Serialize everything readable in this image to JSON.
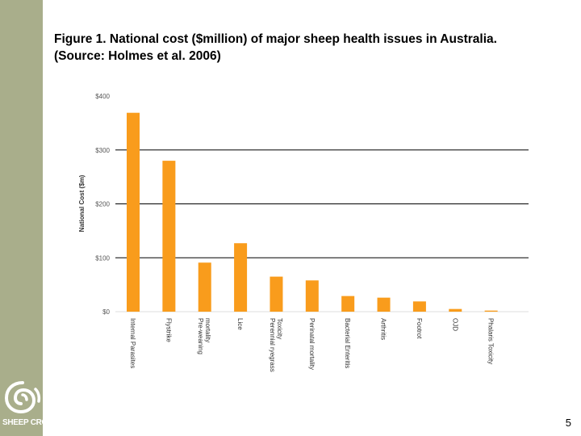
{
  "figure_title": "Figure 1. National cost ($million) of major sheep health issues in Australia. (Source: Holmes et al. 2006)",
  "logo": {
    "text": "SHEEP CRC"
  },
  "page_number": "5",
  "colors": {
    "bar": "#f99c1c",
    "sidebar": "#a9ae8b",
    "gridline": "#000000",
    "axis_text": "#555555"
  },
  "chart_data": {
    "type": "bar",
    "title": "",
    "xlabel": "",
    "ylabel": "National Cost ($m)",
    "ylim": [
      0,
      400
    ],
    "yticks": [
      0,
      100,
      200,
      300,
      400
    ],
    "ytick_labels": [
      "$0",
      "$100",
      "$200",
      "$300",
      "$400"
    ],
    "grid": true,
    "categories": [
      "Internal Parasites",
      "Flystrike",
      "Pre-weaning mortality",
      "Lice",
      "Perennial ryegrass Toxicity",
      "Perinatal mortality",
      "Bacterial Enteritis",
      "Arthritis",
      "Footrot",
      "OJD",
      "Phalaris Toxicity"
    ],
    "category_labels": [
      [
        "Internal Parasites"
      ],
      [
        "Flystrike"
      ],
      [
        "Pre-weaning",
        "mortality"
      ],
      [
        "Lice"
      ],
      [
        "Perennial ryegrass",
        "Toxicity"
      ],
      [
        "Perinatal mortality"
      ],
      [
        "Bacterial Enteritis"
      ],
      [
        "Arthritis"
      ],
      [
        "Footrot"
      ],
      [
        "OJD"
      ],
      [
        "Phalaris Toxicity"
      ]
    ],
    "values": [
      369,
      280,
      91,
      127,
      65,
      58,
      29,
      26,
      19,
      5,
      2
    ]
  }
}
